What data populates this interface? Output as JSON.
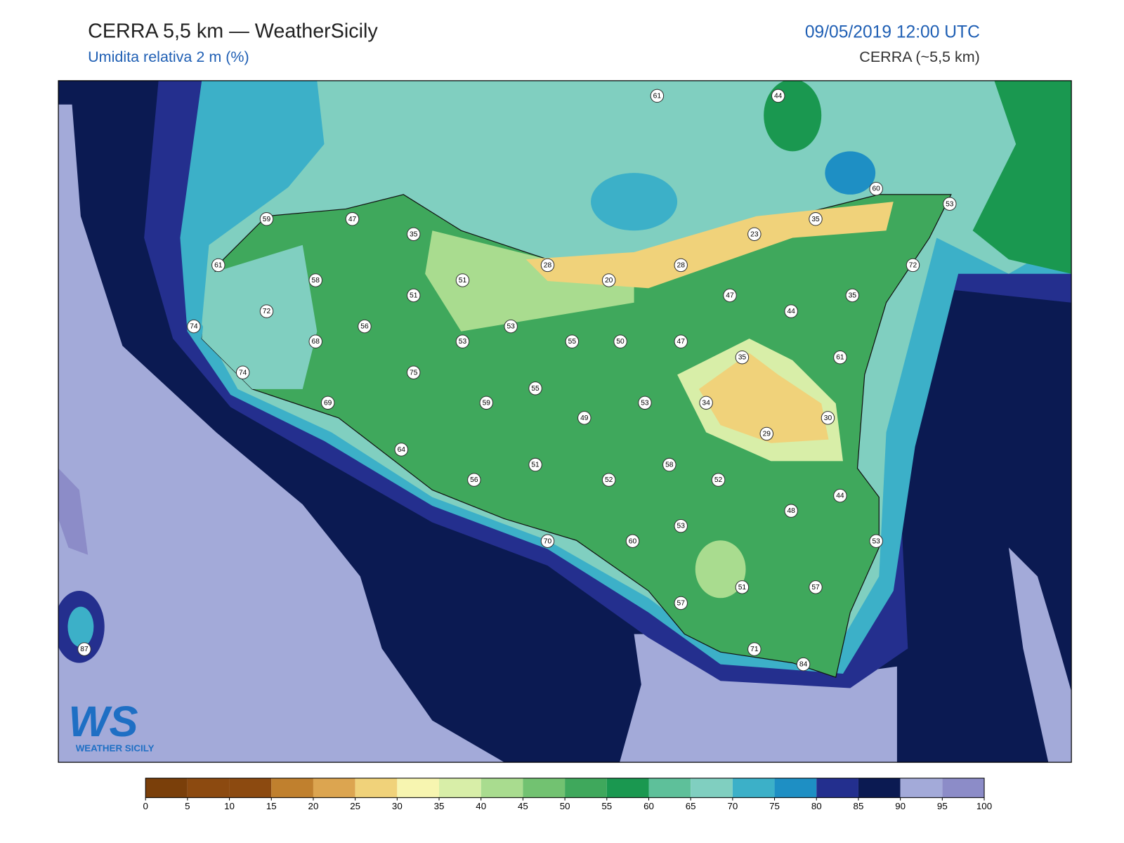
{
  "header": {
    "title": "CERRA 5,5 km — WeatherSicily",
    "subtitle": "Umidita relativa 2 m (%)",
    "datetime": "09/05/2019 12:00 UTC",
    "model": "CERRA (~5,5 km)"
  },
  "stations": [
    61,
    44,
    60,
    53,
    59,
    47,
    35,
    35,
    23,
    61,
    72,
    28,
    20,
    28,
    58,
    51,
    51,
    47,
    35,
    44,
    72,
    74,
    56,
    53,
    53,
    55,
    50,
    47,
    68,
    35,
    61,
    74,
    75,
    55,
    69,
    59,
    53,
    34,
    30,
    49,
    29,
    64,
    51,
    58,
    52,
    52,
    56,
    44,
    48,
    53,
    53,
    70,
    60,
    51,
    57,
    57,
    87,
    71,
    84
  ],
  "colorbar": {
    "ticks": [
      0,
      5,
      10,
      15,
      20,
      25,
      30,
      35,
      40,
      45,
      50,
      55,
      60,
      65,
      70,
      75,
      80,
      85,
      90,
      95,
      100
    ],
    "colors": [
      "#7a3f0a",
      "#8c4a10",
      "#8c4a10",
      "#c0802e",
      "#dca550",
      "#f0d27a",
      "#f7f5b0",
      "#d8eea8",
      "#a9dc8f",
      "#72c271",
      "#3fa85c",
      "#1a9850",
      "#5ec09a",
      "#80cfc0",
      "#3cb0c8",
      "#1e8fc4",
      "#232f8e",
      "#0b1a52",
      "#a3aad9",
      "#8c8cc8"
    ]
  },
  "logo": {
    "mark": "WS",
    "name": "WEATHER SICILY"
  }
}
